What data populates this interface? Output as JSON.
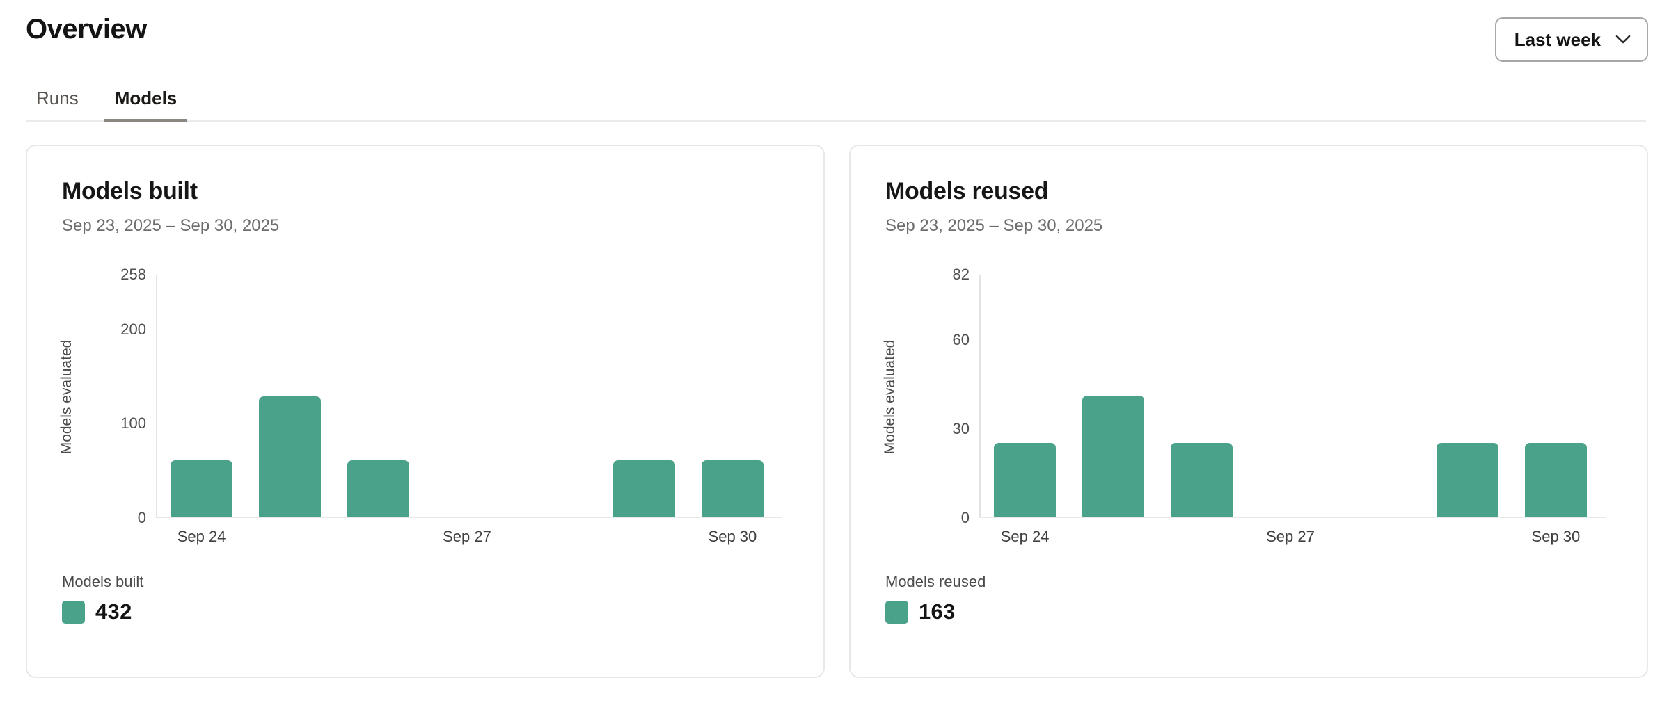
{
  "header": {
    "title": "Overview",
    "range_selector": {
      "label": "Last week",
      "icon": "chevron-down"
    }
  },
  "tabs": [
    {
      "label": "Runs",
      "active": false
    },
    {
      "label": "Models",
      "active": true
    }
  ],
  "colors": {
    "accent": "#4BA28A"
  },
  "cards": [
    {
      "title": "Models built",
      "date_range": "Sep 23, 2025 – Sep 30, 2025",
      "legend": {
        "label": "Models built",
        "value": "432"
      }
    },
    {
      "title": "Models reused",
      "date_range": "Sep 23, 2025 – Sep 30, 2025",
      "legend": {
        "label": "Models reused",
        "value": "163"
      }
    }
  ],
  "chart_data": [
    {
      "type": "bar",
      "title": "Models built",
      "categories": [
        "Sep 24",
        "Sep 25",
        "Sep 26",
        "Sep 27",
        "Sep 28",
        "Sep 29",
        "Sep 30"
      ],
      "values": [
        60,
        128,
        60,
        0,
        0,
        60,
        60
      ],
      "shown_x_ticks": [
        "Sep 24",
        "Sep 27",
        "Sep 30"
      ],
      "xlabel": "",
      "ylabel": "Models evaluated",
      "yticks": [
        0,
        100,
        200,
        258
      ],
      "ylim": [
        0,
        258
      ],
      "bar_color": "#4BA28A",
      "grid": false,
      "legend_position": "bottom-left",
      "period_total": 432
    },
    {
      "type": "bar",
      "title": "Models reused",
      "categories": [
        "Sep 24",
        "Sep 25",
        "Sep 26",
        "Sep 27",
        "Sep 28",
        "Sep 29",
        "Sep 30"
      ],
      "values": [
        25,
        41,
        25,
        0,
        0,
        25,
        25
      ],
      "shown_x_ticks": [
        "Sep 24",
        "Sep 27",
        "Sep 30"
      ],
      "xlabel": "",
      "ylabel": "Models evaluated",
      "yticks": [
        0,
        30,
        60,
        82
      ],
      "ylim": [
        0,
        82
      ],
      "bar_color": "#4BA28A",
      "grid": false,
      "legend_position": "bottom-left",
      "period_total": 163
    }
  ]
}
